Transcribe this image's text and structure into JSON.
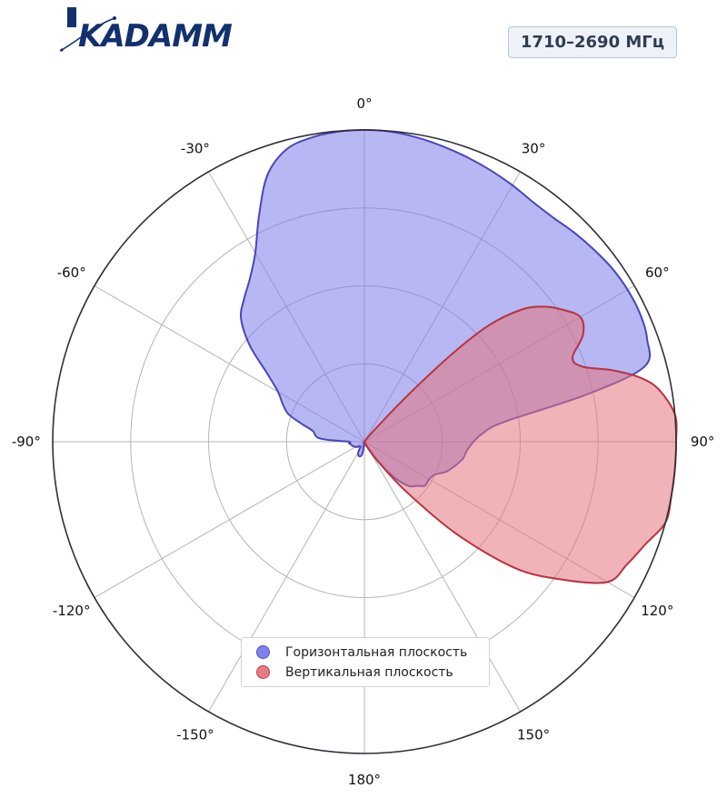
{
  "header": {
    "logo_text": "KADAMM",
    "band_label": "1710–2690 МГц"
  },
  "chart_data": {
    "type": "polar-area",
    "angle_unit": "degrees",
    "angle_direction": "clockwise",
    "zero_location": "top",
    "angle_ticks": [
      0,
      30,
      60,
      90,
      120,
      150,
      180,
      -150,
      -120,
      -90,
      -60,
      -30
    ],
    "angle_tick_labels": [
      "0°",
      "30°",
      "60°",
      "90°",
      "120°",
      "150°",
      "180°",
      "-150°",
      "-120°",
      "-90°",
      "-60°",
      "-30°"
    ],
    "r_range": [
      0,
      1
    ],
    "r_gridlines": [
      0.25,
      0.5,
      0.75,
      1.0
    ],
    "grid": true,
    "legend_position": "bottom-center",
    "series": [
      {
        "name": "Горизонтальная плоскость",
        "color": "#7b7bea",
        "edge_color": "#4a46b8",
        "points": [
          [
            -180,
            0.0
          ],
          [
            -170,
            0.04
          ],
          [
            -160,
            0.05
          ],
          [
            -150,
            0.04
          ],
          [
            -140,
            0.02
          ],
          [
            -125,
            0.03
          ],
          [
            -110,
            0.04
          ],
          [
            -100,
            0.045
          ],
          [
            -95,
            0.05
          ],
          [
            -90,
            0.05
          ],
          [
            -87,
            0.12
          ],
          [
            -85,
            0.15
          ],
          [
            -82,
            0.16
          ],
          [
            -78,
            0.17
          ],
          [
            -74,
            0.21
          ],
          [
            -70,
            0.26
          ],
          [
            -65,
            0.29
          ],
          [
            -60,
            0.32
          ],
          [
            -55,
            0.38
          ],
          [
            -50,
            0.48
          ],
          [
            -45,
            0.56
          ],
          [
            -40,
            0.6
          ],
          [
            -35,
            0.64
          ],
          [
            -30,
            0.7
          ],
          [
            -25,
            0.8
          ],
          [
            -20,
            0.91
          ],
          [
            -15,
            0.97
          ],
          [
            -10,
            0.99
          ],
          [
            -5,
            0.998
          ],
          [
            0,
            1.0
          ],
          [
            5,
            0.998
          ],
          [
            10,
            0.99
          ],
          [
            15,
            0.98
          ],
          [
            20,
            0.97
          ],
          [
            25,
            0.96
          ],
          [
            30,
            0.95
          ],
          [
            35,
            0.94
          ],
          [
            40,
            0.94
          ],
          [
            45,
            0.95
          ],
          [
            50,
            0.96
          ],
          [
            55,
            0.97
          ],
          [
            60,
            0.975
          ],
          [
            65,
            0.975
          ],
          [
            70,
            0.965
          ],
          [
            75,
            0.93
          ],
          [
            78,
            0.73
          ],
          [
            82,
            0.45
          ],
          [
            86,
            0.38
          ],
          [
            90,
            0.35
          ],
          [
            95,
            0.33
          ],
          [
            100,
            0.32
          ],
          [
            105,
            0.3
          ],
          [
            110,
            0.28
          ],
          [
            115,
            0.25
          ],
          [
            120,
            0.24
          ],
          [
            126,
            0.24
          ],
          [
            130,
            0.22
          ],
          [
            135,
            0.2
          ],
          [
            140,
            0.15
          ],
          [
            145,
            0.08
          ],
          [
            150,
            0.03
          ],
          [
            160,
            0.01
          ],
          [
            170,
            0.01
          ],
          [
            180,
            0.0
          ]
        ]
      },
      {
        "name": "Вертикальная плоскость",
        "color": "#e4747d",
        "edge_color": "#b8333e",
        "points": [
          [
            -180,
            0.0
          ],
          [
            -150,
            0.0
          ],
          [
            -120,
            0.0
          ],
          [
            -90,
            0.0
          ],
          [
            -60,
            0.0
          ],
          [
            -30,
            0.0
          ],
          [
            0,
            0.0
          ],
          [
            20,
            0.0
          ],
          [
            30,
            0.0
          ],
          [
            40,
            0.04
          ],
          [
            43,
            0.2
          ],
          [
            45,
            0.4
          ],
          [
            47,
            0.55
          ],
          [
            50,
            0.66
          ],
          [
            53,
            0.72
          ],
          [
            56,
            0.76
          ],
          [
            60,
            0.8
          ],
          [
            64,
            0.78
          ],
          [
            68,
            0.72
          ],
          [
            71,
            0.74
          ],
          [
            74,
            0.83
          ],
          [
            77,
            0.91
          ],
          [
            80,
            0.96
          ],
          [
            85,
            1.0
          ],
          [
            90,
            1.0
          ],
          [
            95,
            1.0
          ],
          [
            100,
            1.0
          ],
          [
            105,
            1.0
          ],
          [
            110,
            0.96
          ],
          [
            115,
            0.93
          ],
          [
            120,
            0.9
          ],
          [
            125,
            0.77
          ],
          [
            130,
            0.63
          ],
          [
            135,
            0.42
          ],
          [
            140,
            0.21
          ],
          [
            145,
            0.08
          ],
          [
            150,
            0.02
          ],
          [
            160,
            0.0
          ],
          [
            180,
            0.0
          ]
        ]
      }
    ]
  }
}
